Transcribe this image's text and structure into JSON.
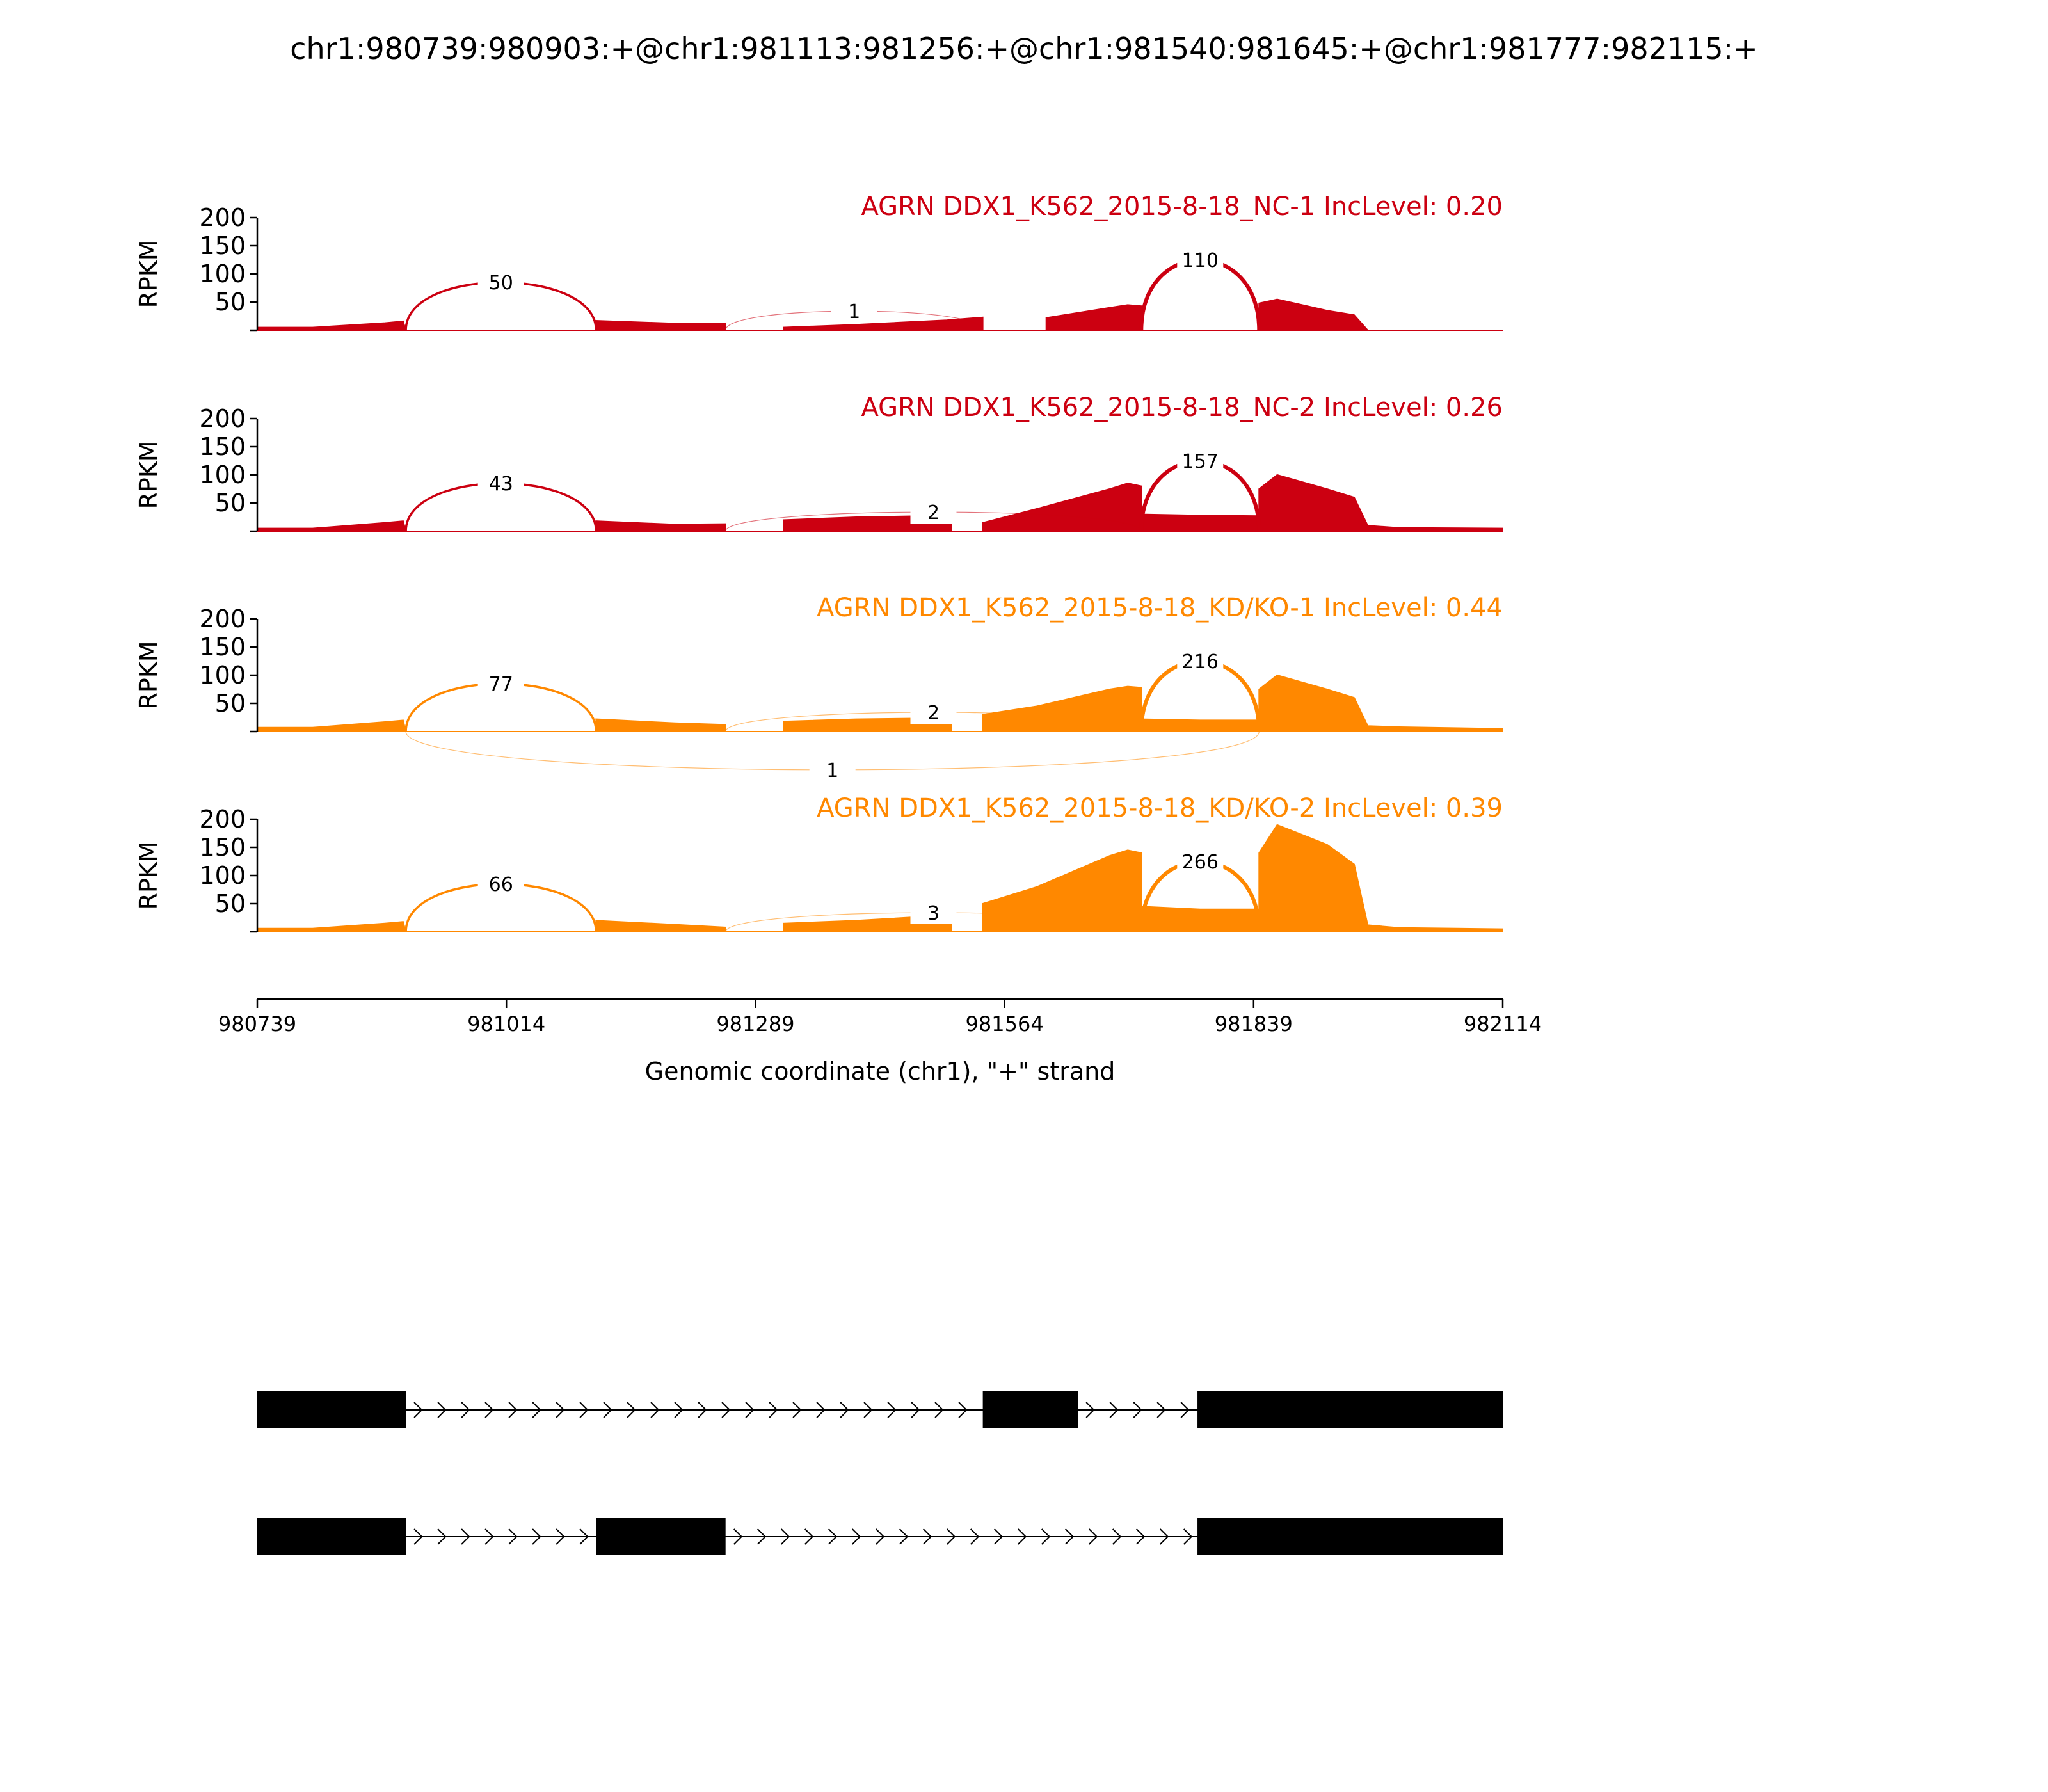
{
  "chart_data": {
    "type": "area",
    "title": "chr1:980739:980903:+@chr1:981113:981256:+@chr1:981540:981645:+@chr1:981777:982115:+",
    "xlabel": "Genomic coordinate (chr1), \"+\" strand",
    "ylabel": "RPKM",
    "xlim": [
      980739,
      982114
    ],
    "x_ticks": [
      "980739",
      "981014",
      "981289",
      "981564",
      "981839",
      "982114"
    ],
    "ylim": [
      0,
      200
    ],
    "y_ticks": [
      "50",
      "100",
      "150",
      "200"
    ],
    "series": [
      {
        "name": "AGRN DDX1_K562_2015-8-18_NC-1 IncLevel: 0.20",
        "color": "#cc0011",
        "coverage": [
          [
            980739,
            5
          ],
          [
            980800,
            5
          ],
          [
            980880,
            13
          ],
          [
            980900,
            16
          ],
          [
            980903,
            0
          ],
          [
            981113,
            0
          ],
          [
            981113,
            17
          ],
          [
            981200,
            12
          ],
          [
            981256,
            12
          ],
          [
            981256,
            0
          ],
          [
            981320,
            0
          ],
          [
            981320,
            5
          ],
          [
            981400,
            10
          ],
          [
            981500,
            18
          ],
          [
            981540,
            23
          ],
          [
            981540,
            0
          ],
          [
            981610,
            0
          ],
          [
            981610,
            22
          ],
          [
            981680,
            40
          ],
          [
            981700,
            45
          ],
          [
            981715,
            43
          ],
          [
            981715,
            0
          ],
          [
            981845,
            0
          ],
          [
            981845,
            48
          ],
          [
            981865,
            55
          ],
          [
            981920,
            35
          ],
          [
            981950,
            27
          ],
          [
            981965,
            0
          ],
          [
            982114,
            0
          ]
        ],
        "junctions": [
          {
            "label": "50",
            "from": 980903,
            "to": 981113,
            "count": 50
          },
          {
            "label": "1",
            "from": 981256,
            "to": 981540,
            "count": 1
          },
          {
            "label": "110",
            "from": 981715,
            "to": 981845,
            "count": 110
          }
        ]
      },
      {
        "name": "AGRN DDX1_K562_2015-8-18_NC-2 IncLevel: 0.26",
        "color": "#cc0011",
        "coverage": [
          [
            980739,
            5
          ],
          [
            980800,
            5
          ],
          [
            980880,
            15
          ],
          [
            980900,
            18
          ],
          [
            980903,
            0
          ],
          [
            981113,
            0
          ],
          [
            981113,
            18
          ],
          [
            981200,
            12
          ],
          [
            981256,
            13
          ],
          [
            981256,
            0
          ],
          [
            981320,
            0
          ],
          [
            981320,
            20
          ],
          [
            981400,
            25
          ],
          [
            981505,
            28
          ],
          [
            981505,
            0
          ],
          [
            981540,
            0
          ],
          [
            981540,
            15
          ],
          [
            981600,
            40
          ],
          [
            981680,
            75
          ],
          [
            981700,
            85
          ],
          [
            981715,
            80
          ],
          [
            981715,
            30
          ],
          [
            981780,
            28
          ],
          [
            981845,
            27
          ],
          [
            981845,
            75
          ],
          [
            981865,
            100
          ],
          [
            981920,
            75
          ],
          [
            981950,
            60
          ],
          [
            981965,
            10
          ],
          [
            982000,
            6
          ],
          [
            982114,
            5
          ]
        ],
        "junctions": [
          {
            "label": "43",
            "from": 980903,
            "to": 981113,
            "count": 43
          },
          {
            "label": "2",
            "from": 981256,
            "to": 981715,
            "count": 2
          },
          {
            "label": "157",
            "from": 981715,
            "to": 981845,
            "count": 157
          }
        ]
      },
      {
        "name": "AGRN DDX1_K562_2015-8-18_KD/KO-1 IncLevel: 0.44",
        "color": "#ff8800",
        "coverage": [
          [
            980739,
            7
          ],
          [
            980800,
            7
          ],
          [
            980880,
            17
          ],
          [
            980900,
            20
          ],
          [
            980903,
            0
          ],
          [
            981113,
            0
          ],
          [
            981113,
            22
          ],
          [
            981200,
            15
          ],
          [
            981256,
            12
          ],
          [
            981256,
            0
          ],
          [
            981320,
            0
          ],
          [
            981320,
            18
          ],
          [
            981400,
            22
          ],
          [
            981505,
            24
          ],
          [
            981505,
            0
          ],
          [
            981540,
            0
          ],
          [
            981540,
            30
          ],
          [
            981600,
            45
          ],
          [
            981680,
            75
          ],
          [
            981700,
            80
          ],
          [
            981715,
            78
          ],
          [
            981715,
            22
          ],
          [
            981780,
            20
          ],
          [
            981845,
            20
          ],
          [
            981845,
            75
          ],
          [
            981865,
            100
          ],
          [
            981920,
            75
          ],
          [
            981950,
            60
          ],
          [
            981965,
            10
          ],
          [
            982000,
            8
          ],
          [
            982114,
            5
          ]
        ],
        "junctions": [
          {
            "label": "77",
            "from": 980903,
            "to": 981113,
            "count": 77
          },
          {
            "label": "2",
            "from": 981256,
            "to": 981715,
            "count": 2
          },
          {
            "label": "216",
            "from": 981715,
            "to": 981845,
            "count": 216
          },
          {
            "label": "1",
            "from": 980903,
            "to": 981845,
            "count": 1
          }
        ]
      },
      {
        "name": "AGRN DDX1_K562_2015-8-18_KD/KO-2 IncLevel: 0.39",
        "color": "#ff8800",
        "coverage": [
          [
            980739,
            6
          ],
          [
            980800,
            6
          ],
          [
            980880,
            15
          ],
          [
            980900,
            18
          ],
          [
            980903,
            0
          ],
          [
            981113,
            0
          ],
          [
            981113,
            20
          ],
          [
            981200,
            13
          ],
          [
            981256,
            8
          ],
          [
            981256,
            0
          ],
          [
            981320,
            0
          ],
          [
            981320,
            15
          ],
          [
            981400,
            20
          ],
          [
            981505,
            30
          ],
          [
            981505,
            0
          ],
          [
            981540,
            0
          ],
          [
            981540,
            50
          ],
          [
            981600,
            80
          ],
          [
            981680,
            135
          ],
          [
            981700,
            145
          ],
          [
            981715,
            140
          ],
          [
            981715,
            45
          ],
          [
            981780,
            40
          ],
          [
            981845,
            40
          ],
          [
            981845,
            140
          ],
          [
            981865,
            190
          ],
          [
            981920,
            155
          ],
          [
            981950,
            120
          ],
          [
            981965,
            12
          ],
          [
            982000,
            7
          ],
          [
            982114,
            5
          ]
        ],
        "junctions": [
          {
            "label": "66",
            "from": 980903,
            "to": 981113,
            "count": 66
          },
          {
            "label": "3",
            "from": 981256,
            "to": 981715,
            "count": 3
          },
          {
            "label": "266",
            "from": 981715,
            "to": 981845,
            "count": 266
          }
        ]
      }
    ],
    "gene_models": [
      {
        "exons": [
          [
            980739,
            980903
          ],
          [
            981540,
            981645
          ],
          [
            981777,
            982114
          ]
        ]
      },
      {
        "exons": [
          [
            980739,
            980903
          ],
          [
            981113,
            981256
          ],
          [
            981777,
            982114
          ]
        ]
      }
    ]
  }
}
